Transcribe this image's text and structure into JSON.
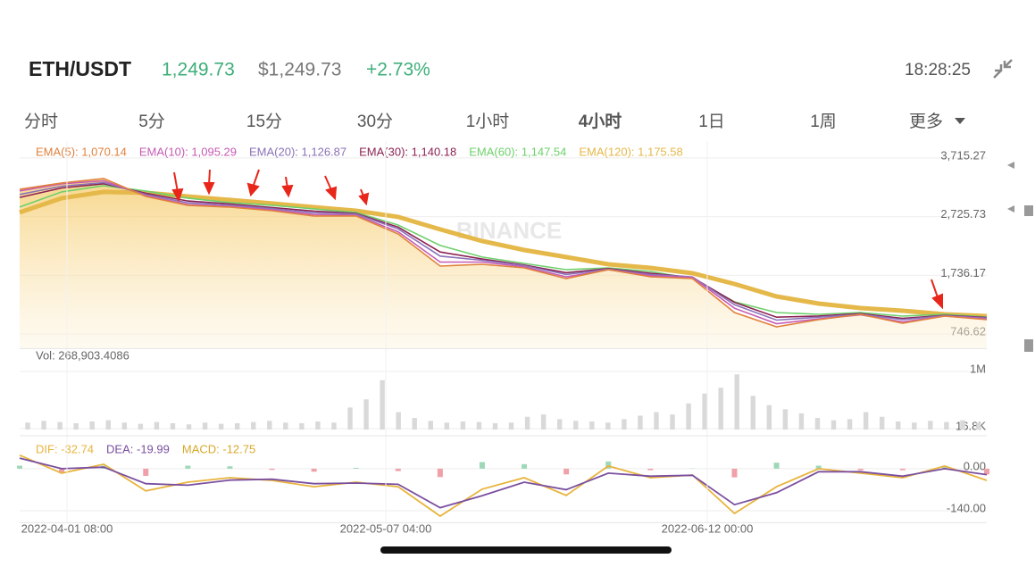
{
  "header": {
    "pair": "ETH/USDT",
    "price": "1,249.73",
    "usd_price": "$1,249.73",
    "change": "+2.73%",
    "time": "18:28:25"
  },
  "tabs": [
    "分时",
    "5分",
    "15分",
    "30分",
    "1小时",
    "4小时",
    "1日",
    "1周",
    "更多"
  ],
  "active_tab": 5,
  "watermark": "BINANCE",
  "chart_data": [
    {
      "type": "line",
      "ylim": [
        500,
        4000
      ],
      "yticks": [
        {
          "value": 3715.27,
          "label": "3,715.27"
        },
        {
          "value": 2725.73,
          "label": "2,725.73"
        },
        {
          "value": 1736.17,
          "label": "1,736.17"
        },
        746.62
      ],
      "series": [
        {
          "name": "EMA(5): 1,070.14",
          "color": "#e0823d",
          "values": [
            3188,
            3293,
            3369,
            3067,
            2917,
            2886,
            2826,
            2736,
            2736,
            2434,
            1892,
            1922,
            1862,
            1681,
            1832,
            1711,
            1681,
            1108,
            867,
            988,
            1078,
            927,
            1048,
            988
          ]
        },
        {
          "name": "EMA(10): 1,095.29",
          "color": "#c65bb3",
          "values": [
            3160,
            3280,
            3330,
            3080,
            2930,
            2900,
            2840,
            2760,
            2750,
            2470,
            1960,
            1960,
            1880,
            1710,
            1830,
            1730,
            1700,
            1180,
            920,
            1000,
            1070,
            950,
            1050,
            1000
          ]
        },
        {
          "name": "EMA(20): 1,126.87",
          "color": "#8a72b8",
          "values": [
            3100,
            3240,
            3300,
            3100,
            2960,
            2920,
            2860,
            2790,
            2770,
            2520,
            2060,
            1990,
            1900,
            1750,
            1840,
            1750,
            1710,
            1240,
            980,
            1030,
            1080,
            990,
            1055,
            1015
          ]
        },
        {
          "name": "EMA(30): 1,140.18",
          "color": "#8b2252",
          "values": [
            3050,
            3210,
            3280,
            3120,
            2990,
            2940,
            2880,
            2820,
            2780,
            2550,
            2130,
            2010,
            1910,
            1780,
            1850,
            1770,
            1700,
            1280,
            1030,
            1050,
            1090,
            1010,
            1060,
            1025
          ]
        },
        {
          "name": "EMA(60): 1,147.54",
          "color": "#6dd06a",
          "values": [
            2887,
            3143,
            3248,
            3158,
            3037,
            2962,
            2917,
            2856,
            2796,
            2585,
            2239,
            2043,
            1937,
            1832,
            1862,
            1801,
            1681,
            1289,
            1108,
            1078,
            1108,
            1048,
            1078,
            1033
          ]
        },
        {
          "name": "EMA(120): 1,175.58",
          "color": "#e5b84a",
          "values": [
            2796,
            3037,
            3143,
            3128,
            3067,
            3007,
            2947,
            2886,
            2826,
            2721,
            2510,
            2314,
            2163,
            2043,
            1922,
            1862,
            1771,
            1591,
            1380,
            1259,
            1184,
            1138,
            1078,
            1048
          ]
        }
      ]
    },
    {
      "type": "bar",
      "title": "Vol: 268,903.4086",
      "color": "#d9d9d9",
      "ylim": [
        0,
        1300000
      ],
      "yticks": [
        {
          "value": 1000000,
          "label": "1M"
        },
        {
          "value": 16800,
          "label": "16.8K"
        }
      ],
      "values": [
        120000,
        150000,
        130000,
        110000,
        140000,
        160000,
        120000,
        100000,
        130000,
        110000,
        90000,
        120000,
        100000,
        110000,
        130000,
        150000,
        120000,
        110000,
        140000,
        120000,
        380000,
        520000,
        850000,
        300000,
        200000,
        150000,
        120000,
        140000,
        130000,
        110000,
        120000,
        220000,
        260000,
        180000,
        150000,
        140000,
        120000,
        180000,
        240000,
        300000,
        260000,
        450000,
        620000,
        720000,
        950000,
        580000,
        420000,
        350000,
        280000,
        200000,
        160000,
        180000,
        300000,
        220000,
        140000,
        120000,
        150000,
        130000,
        160000,
        120000
      ]
    },
    {
      "type": "macd",
      "ylim": [
        -180,
        80
      ],
      "yticks": [
        {
          "value": 0,
          "label": "0.00"
        },
        {
          "value": -140,
          "label": "-140.00"
        }
      ],
      "x_labels": [
        "2022-04-01 08:00",
        "2022-05-07 04:00",
        "2022-06-12 00:00"
      ],
      "series": [
        {
          "name": "DIF: -32.74",
          "color": "#e8b43c",
          "values": [
            45,
            -15,
            15,
            -74,
            -45,
            -30,
            -39,
            -60,
            -45,
            -60,
            -158,
            -68,
            -30,
            -89,
            9,
            -30,
            -21,
            -149,
            -60,
            0,
            -15,
            -30,
            9,
            -39
          ]
        },
        {
          "name": "DEA: -19.99",
          "color": "#7a4fa0",
          "values": [
            35,
            0,
            5,
            -50,
            -55,
            -38,
            -35,
            -50,
            -48,
            -52,
            -130,
            -90,
            -45,
            -70,
            -15,
            -25,
            -22,
            -120,
            -80,
            -10,
            -10,
            -25,
            0,
            -20
          ]
        }
      ],
      "histogram": {
        "name": "MACD: -12.75",
        "color": "#d8a82c",
        "up_color": "#9fd8b8",
        "down_color": "#f0a0a8",
        "values": [
          10,
          -15,
          10,
          -24,
          10,
          8,
          -4,
          -10,
          3,
          -8,
          -28,
          22,
          15,
          -19,
          24,
          -5,
          1,
          -29,
          20,
          10,
          -5,
          -5,
          9,
          -19
        ]
      }
    }
  ]
}
